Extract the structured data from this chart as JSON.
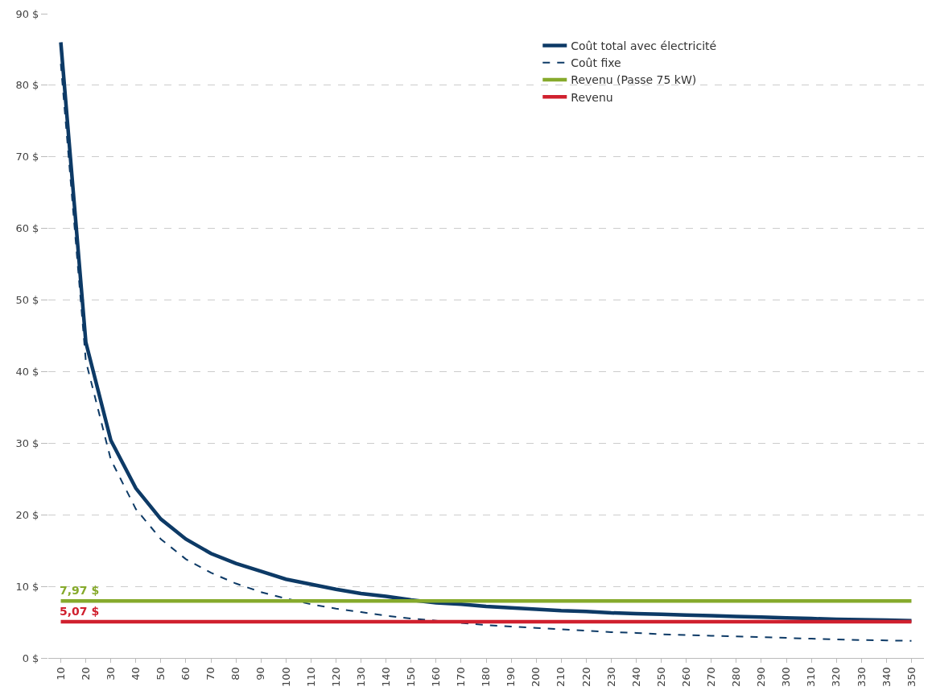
{
  "chart_data": {
    "type": "line",
    "categories": [
      "10",
      "20",
      "30",
      "40",
      "50",
      "60",
      "70",
      "80",
      "90",
      "100",
      "110",
      "120",
      "130",
      "140",
      "150",
      "160",
      "170",
      "180",
      "190",
      "200",
      "210",
      "220",
      "230",
      "240",
      "250",
      "260",
      "270",
      "280",
      "290",
      "300",
      "310",
      "320",
      "330",
      "340",
      "350"
    ],
    "series": [
      {
        "name": "Coût total avec électricité",
        "color": "#0d3a66",
        "line_style": "solid",
        "values": [
          86,
          44.1,
          30.4,
          23.7,
          19.4,
          16.6,
          14.6,
          13.2,
          12.1,
          11.0,
          10.3,
          9.6,
          9.0,
          8.6,
          8.1,
          7.7,
          7.5,
          7.2,
          7.0,
          6.8,
          6.6,
          6.5,
          6.3,
          6.2,
          6.1,
          6.0,
          5.9,
          5.8,
          5.7,
          5.6,
          5.5,
          5.4,
          5.35,
          5.3,
          5.2
        ]
      },
      {
        "name": "Coût fixe",
        "color": "#0d3a66",
        "line_style": "dashed",
        "values": [
          83,
          41.5,
          27.7,
          20.8,
          16.6,
          13.8,
          11.9,
          10.4,
          9.2,
          8.3,
          7.5,
          6.9,
          6.4,
          5.9,
          5.5,
          5.2,
          4.9,
          4.6,
          4.4,
          4.2,
          4.0,
          3.8,
          3.6,
          3.5,
          3.3,
          3.2,
          3.1,
          3.0,
          2.9,
          2.8,
          2.7,
          2.6,
          2.5,
          2.45,
          2.4
        ]
      },
      {
        "name": "Revenu (Passe 75 kW)",
        "color": "#86aa2c",
        "line_style": "solid",
        "values": [
          7.97,
          7.97,
          7.97,
          7.97,
          7.97,
          7.97,
          7.97,
          7.97,
          7.97,
          7.97,
          7.97,
          7.97,
          7.97,
          7.97,
          7.97,
          7.97,
          7.97,
          7.97,
          7.97,
          7.97,
          7.97,
          7.97,
          7.97,
          7.97,
          7.97,
          7.97,
          7.97,
          7.97,
          7.97,
          7.97,
          7.97,
          7.97,
          7.97,
          7.97,
          7.97
        ],
        "value_labels": [
          "7,97 $",
          null,
          null,
          null,
          null,
          null,
          null,
          null,
          null,
          null,
          null,
          null,
          null,
          null,
          null,
          null,
          null,
          null,
          null,
          null,
          null,
          null,
          null,
          null,
          null,
          null,
          null,
          null,
          null,
          null,
          null,
          null,
          null,
          null,
          null
        ]
      },
      {
        "name": "Revenu",
        "color": "#d0202e",
        "line_style": "solid",
        "values": [
          5.07,
          5.07,
          5.07,
          5.07,
          5.07,
          5.07,
          5.07,
          5.07,
          5.07,
          5.07,
          5.07,
          5.07,
          5.07,
          5.07,
          5.07,
          5.07,
          5.07,
          5.07,
          5.07,
          5.07,
          5.07,
          5.07,
          5.07,
          5.07,
          5.07,
          5.07,
          5.07,
          5.07,
          5.07,
          5.07,
          5.07,
          5.07,
          5.07,
          5.07,
          5.07
        ],
        "value_labels": [
          "5,07 $",
          null,
          null,
          null,
          null,
          null,
          null,
          null,
          null,
          null,
          null,
          null,
          null,
          null,
          null,
          null,
          null,
          null,
          null,
          null,
          null,
          null,
          null,
          null,
          null,
          null,
          null,
          null,
          null,
          null,
          null,
          null,
          null,
          null,
          null
        ]
      }
    ],
    "ylim": [
      0,
      90
    ],
    "yticks": [
      {
        "value": 0,
        "label": "0 $"
      },
      {
        "value": 10,
        "label": "10 $"
      },
      {
        "value": 20,
        "label": "20 $"
      },
      {
        "value": 30,
        "label": "30 $"
      },
      {
        "value": 40,
        "label": "40 $"
      },
      {
        "value": 50,
        "label": "50 $"
      },
      {
        "value": 60,
        "label": "60 $"
      },
      {
        "value": 70,
        "label": "70 $"
      },
      {
        "value": 80,
        "label": "80 $"
      },
      {
        "value": 90,
        "label": "90 $"
      }
    ],
    "grid": "y",
    "legend": "top right",
    "marker": "none"
  }
}
